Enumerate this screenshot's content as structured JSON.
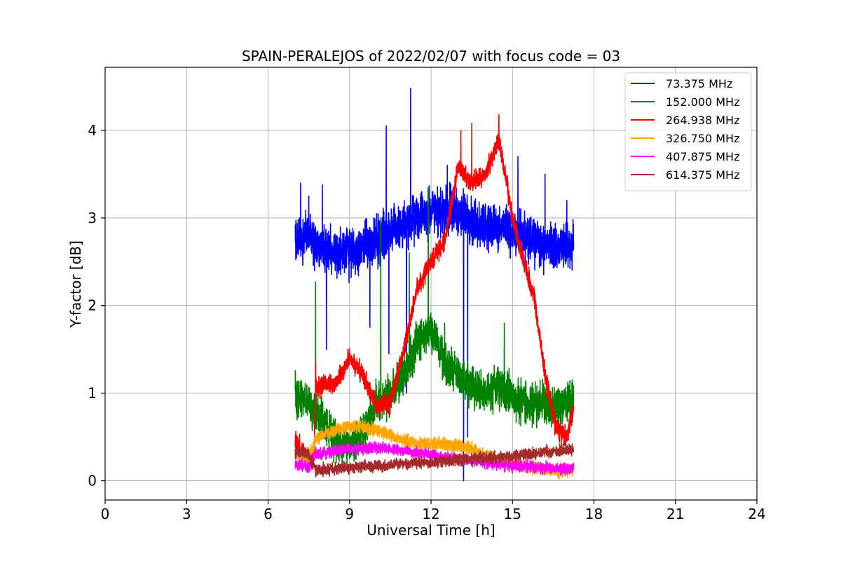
{
  "chart_data": {
    "type": "line",
    "title": "SPAIN-PERALEJOS of 2022/02/07 with focus code = 03",
    "xlabel": "Universal Time [h]",
    "ylabel": "Y-factor [dB]",
    "xlim": [
      0,
      24
    ],
    "ylim": [
      -0.22,
      4.72
    ],
    "xticks": [
      0,
      3,
      6,
      9,
      12,
      15,
      18,
      21,
      24
    ],
    "yticks": [
      0,
      1,
      2,
      3,
      4
    ],
    "grid": true,
    "legend_position": "top-right",
    "series": [
      {
        "name": " 73.375 MHz",
        "color": "#0000ff",
        "noise": 0.28,
        "spikes": [
          [
            7.2,
            3.4
          ],
          [
            7.5,
            3.25
          ],
          [
            8.0,
            3.38
          ],
          [
            8.15,
            1.5
          ],
          [
            9.75,
            1.75
          ],
          [
            10.0,
            3.05
          ],
          [
            10.35,
            4.05
          ],
          [
            10.45,
            1.45
          ],
          [
            11.1,
            1.0
          ],
          [
            11.25,
            4.48
          ],
          [
            12.6,
            3.6
          ],
          [
            13.2,
            0.0
          ],
          [
            13.35,
            0.5
          ],
          [
            15.2,
            3.7
          ],
          [
            16.2,
            3.5
          ],
          [
            17.0,
            3.2
          ]
        ],
        "x": [
          7.0,
          7.5,
          8.0,
          8.5,
          9.0,
          9.5,
          10.0,
          10.5,
          11.0,
          11.5,
          12.0,
          12.5,
          13.0,
          13.5,
          14.0,
          14.5,
          15.0,
          15.5,
          16.0,
          16.5,
          17.0,
          17.25
        ],
        "y": [
          2.72,
          2.78,
          2.65,
          2.6,
          2.62,
          2.66,
          2.75,
          2.85,
          2.9,
          3.0,
          3.05,
          3.1,
          3.05,
          2.95,
          2.9,
          2.9,
          2.85,
          2.8,
          2.7,
          2.65,
          2.7,
          2.72
        ]
      },
      {
        "name": "152.000 MHz",
        "color": "#008000",
        "noise": 0.25,
        "spikes": [
          [
            7.75,
            2.27
          ],
          [
            10.15,
            3.0
          ],
          [
            11.2,
            2.6
          ],
          [
            11.9,
            3.35
          ],
          [
            12.5,
            1.8
          ],
          [
            14.7,
            1.8
          ],
          [
            17.2,
            1.15
          ]
        ],
        "x": [
          7.0,
          7.5,
          8.0,
          8.5,
          9.0,
          9.5,
          10.0,
          10.5,
          11.0,
          11.5,
          12.0,
          12.5,
          13.0,
          13.5,
          14.0,
          14.5,
          15.0,
          15.5,
          16.0,
          16.5,
          17.0,
          17.25
        ],
        "y": [
          0.95,
          0.88,
          0.7,
          0.45,
          0.4,
          0.55,
          0.9,
          1.0,
          1.2,
          1.6,
          1.75,
          1.35,
          1.2,
          1.05,
          1.0,
          1.1,
          0.95,
          0.9,
          0.88,
          0.85,
          0.88,
          0.9
        ]
      },
      {
        "name": "264.938 MHz",
        "color": "#ff0000",
        "noise": 0.12,
        "spikes": [
          [
            7.75,
            1.35
          ],
          [
            13.1,
            4.0
          ],
          [
            13.5,
            4.08
          ],
          [
            14.5,
            4.18
          ]
        ],
        "x": [
          7.0,
          7.4,
          7.7,
          7.75,
          8.0,
          8.5,
          9.0,
          9.5,
          10.0,
          10.5,
          11.0,
          11.5,
          12.0,
          12.5,
          13.0,
          13.5,
          14.0,
          14.5,
          15.0,
          15.5,
          15.8,
          16.2,
          16.6,
          17.0,
          17.25
        ],
        "y": [
          0.45,
          0.3,
          0.25,
          1.05,
          1.1,
          1.1,
          1.4,
          1.2,
          0.85,
          0.9,
          1.5,
          2.2,
          2.5,
          2.75,
          3.6,
          3.4,
          3.5,
          3.9,
          3.0,
          2.4,
          2.1,
          1.2,
          0.6,
          0.5,
          0.85
        ]
      },
      {
        "name": "326.750 MHz",
        "color": "#ffa500",
        "noise": 0.08,
        "spikes": [],
        "x": [
          7.0,
          7.5,
          7.75,
          8.0,
          8.5,
          9.0,
          9.5,
          10.0,
          10.5,
          11.0,
          11.5,
          12.0,
          12.5,
          13.0,
          13.5,
          14.0,
          14.5,
          15.0,
          15.5,
          16.0,
          16.5,
          17.0,
          17.25
        ],
        "y": [
          0.3,
          0.28,
          0.45,
          0.52,
          0.58,
          0.62,
          0.62,
          0.58,
          0.52,
          0.46,
          0.42,
          0.42,
          0.42,
          0.4,
          0.36,
          0.28,
          0.22,
          0.2,
          0.16,
          0.14,
          0.12,
          0.12,
          0.12
        ]
      },
      {
        "name": "407.875 MHz",
        "color": "#ff00ff",
        "noise": 0.07,
        "spikes": [],
        "x": [
          7.0,
          7.5,
          7.75,
          8.0,
          8.5,
          9.0,
          9.5,
          10.0,
          10.5,
          11.0,
          11.5,
          12.0,
          12.5,
          13.0,
          13.5,
          14.0,
          14.5,
          15.0,
          15.5,
          16.0,
          16.5,
          17.0,
          17.25
        ],
        "y": [
          0.18,
          0.16,
          0.3,
          0.32,
          0.34,
          0.36,
          0.37,
          0.38,
          0.36,
          0.34,
          0.32,
          0.3,
          0.27,
          0.25,
          0.23,
          0.21,
          0.19,
          0.17,
          0.16,
          0.15,
          0.14,
          0.14,
          0.15
        ]
      },
      {
        "name": "614.375 MHz",
        "color": "#a52a2a",
        "noise": 0.07,
        "spikes": [],
        "x": [
          7.0,
          7.5,
          7.75,
          8.0,
          8.5,
          9.0,
          9.5,
          10.0,
          10.5,
          11.0,
          11.5,
          12.0,
          12.5,
          13.0,
          13.5,
          14.0,
          14.5,
          15.0,
          15.5,
          16.0,
          16.5,
          17.0,
          17.25
        ],
        "y": [
          0.34,
          0.3,
          0.12,
          0.13,
          0.14,
          0.15,
          0.16,
          0.17,
          0.18,
          0.19,
          0.2,
          0.21,
          0.22,
          0.24,
          0.25,
          0.26,
          0.27,
          0.28,
          0.3,
          0.32,
          0.34,
          0.35,
          0.35
        ]
      }
    ]
  }
}
